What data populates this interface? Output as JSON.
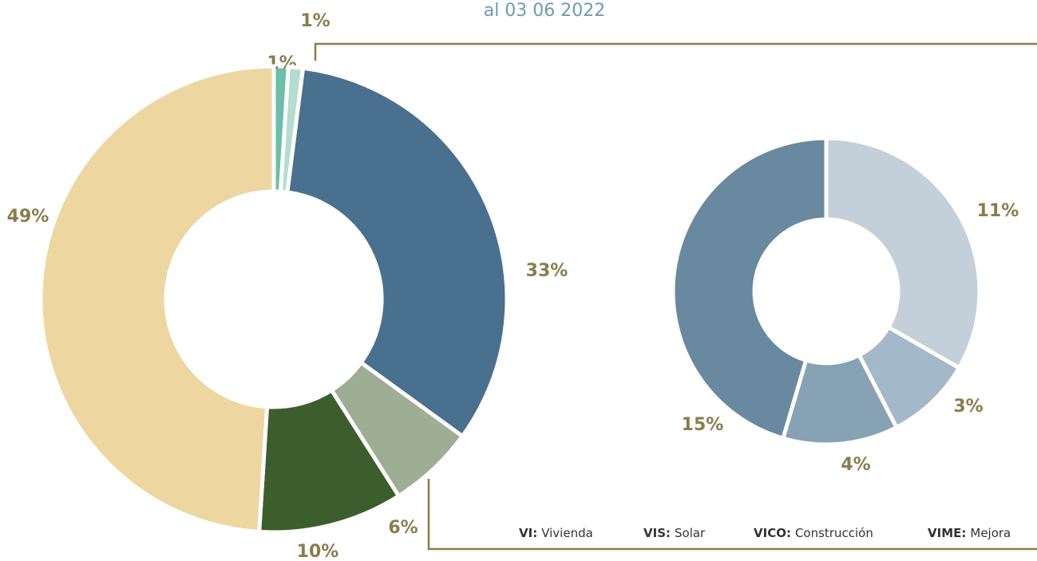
{
  "chart_data": [
    {
      "type": "donut",
      "subtitle": "al 03 06 2022",
      "categories": [
        null,
        null,
        null,
        null,
        null,
        null
      ],
      "values": [
        1,
        1,
        33,
        6,
        10,
        49
      ],
      "value_labels": [
        "1%",
        "1%",
        "33%",
        "6%",
        "10%",
        "49%"
      ],
      "colors": [
        "#6dbfa7",
        "#b4dcd1",
        "#4a708f",
        "#9eae95",
        "#3c5e2c",
        "#eed6a0"
      ]
    },
    {
      "type": "donut",
      "categories": [
        null,
        null,
        null,
        null
      ],
      "values": [
        11,
        3,
        4,
        15
      ],
      "value_labels": [
        "11%",
        "3%",
        "4%",
        "15%"
      ],
      "colors": [
        "#c3d0da",
        "#a3b8c8",
        "#87a1b5",
        "#6889a0"
      ],
      "legend": [
        {
          "key": "VI:",
          "label": "Vivienda"
        },
        {
          "key": "VIS:",
          "label": "Solar"
        },
        {
          "key": "VICO:",
          "label": "Construcción"
        },
        {
          "key": "VIME:",
          "label": "Mejora"
        }
      ]
    }
  ]
}
